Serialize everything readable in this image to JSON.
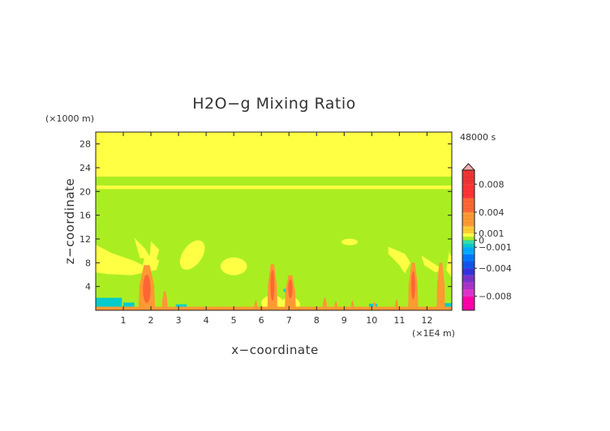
{
  "chart_data": {
    "type": "heatmap",
    "title": "H2O−g Mixing Ratio",
    "time_label": "48000 s",
    "xlabel": "x−coordinate",
    "ylabel": "z−coordinate",
    "x_unit": "(×1E4 m)",
    "y_unit": "(×1000 m)",
    "xlim": [
      0,
      12.9
    ],
    "ylim": [
      0,
      30
    ],
    "x_ticks": [
      1,
      2,
      3,
      4,
      5,
      6,
      7,
      8,
      9,
      10,
      11,
      12
    ],
    "y_ticks": [
      4,
      8,
      12,
      16,
      20,
      24,
      28
    ],
    "colorbar": {
      "range": [
        -0.01,
        0.01
      ],
      "tick_values": [
        0.008,
        0.004,
        0.001,
        0,
        -0.001,
        -0.004,
        -0.008
      ],
      "tick_labels": [
        "0.008",
        "0.004",
        "0.001",
        "0",
        "−0.001",
        "−0.004",
        "−0.008"
      ],
      "extend": "max",
      "colors": {
        "-0.010": "#ff00aa",
        "-0.008": "#dd33cc",
        "-0.007": "#aa33cc",
        "-0.006": "#7733cc",
        "-0.005": "#3333dd",
        "-0.004": "#1155ee",
        "-0.003": "#0077ff",
        "-0.002": "#00aaff",
        "-0.001": "#00cccc",
        "-0.0005": "#33ddaa",
        "0": "#aaee22",
        "0.0005": "#ffff44",
        "0.001": "#ffcc33",
        "0.002": "#ff9933",
        "0.004": "#ff6633",
        "0.006": "#ff3333",
        "0.008": "#ee3333",
        "0.010": "#ffaaaa"
      }
    },
    "regions": [
      {
        "name": "background",
        "value": 0,
        "bounds": {
          "x": [
            0,
            12.9
          ],
          "z": [
            0,
            30
          ]
        }
      },
      {
        "name": "upper-layer",
        "value": 0.0005,
        "bounds": {
          "x": [
            0,
            12.9
          ],
          "z": [
            22.5,
            30
          ]
        }
      },
      {
        "name": "band-21km",
        "value": 0.0005,
        "bounds": {
          "x": [
            0,
            12.9
          ],
          "z": [
            20.4,
            21.0
          ]
        }
      },
      {
        "name": "surface-layer",
        "value": 0.002,
        "bounds": {
          "x": [
            0,
            12.9
          ],
          "z": [
            0,
            0.6
          ]
        }
      },
      {
        "name": "plume-1.8",
        "value": 0.002,
        "center": [
          1.85,
          3.5
        ]
      },
      {
        "name": "plume-6.4",
        "value": 0.002,
        "center": [
          6.4,
          3.5
        ]
      },
      {
        "name": "plume-7.0",
        "value": 0.002,
        "center": [
          7.05,
          3
        ]
      },
      {
        "name": "plume-11.5",
        "value": 0.002,
        "center": [
          11.5,
          3.5
        ]
      },
      {
        "name": "plume-12.5",
        "value": 0.002,
        "center": [
          12.5,
          3.5
        ]
      },
      {
        "name": "moist-blob-0.8",
        "value": 0.0005,
        "center": [
          0.8,
          8
        ]
      },
      {
        "name": "moist-blob-3.5",
        "value": 0.0005,
        "center": [
          3.5,
          9
        ]
      },
      {
        "name": "moist-blob-5.0",
        "value": 0.0005,
        "center": [
          5.0,
          7.3
        ]
      },
      {
        "name": "moist-blob-9.2",
        "value": 0.0005,
        "center": [
          9.2,
          11.6
        ]
      },
      {
        "name": "moist-blob-11.3",
        "value": 0.0005,
        "center": [
          11.3,
          8.5
        ]
      },
      {
        "name": "dry-patch-0.5",
        "value": -0.001,
        "center": [
          0.5,
          1.4
        ]
      }
    ]
  }
}
